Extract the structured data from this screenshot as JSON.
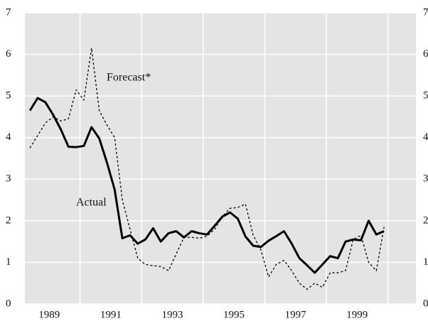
{
  "chart_data": {
    "type": "line",
    "x": [
      1988.375,
      1988.625,
      1988.875,
      1989.125,
      1989.375,
      1989.625,
      1989.875,
      1990.125,
      1990.375,
      1990.625,
      1990.875,
      1991.125,
      1991.375,
      1991.625,
      1991.875,
      1992.125,
      1992.375,
      1992.625,
      1992.875,
      1993.125,
      1993.375,
      1993.625,
      1993.875,
      1994.125,
      1994.375,
      1994.625,
      1994.875,
      1995.125,
      1995.375,
      1995.625,
      1995.875,
      1996.125,
      1996.375,
      1996.625,
      1996.875,
      1997.125,
      1997.375,
      1997.625,
      1997.875,
      1998.125,
      1998.375,
      1998.625,
      1998.875,
      1999.125,
      1999.375,
      1999.625,
      1999.875
    ],
    "series": [
      {
        "name": "Actual",
        "color": "#000000",
        "style": "solid",
        "values": [
          4.65,
          4.95,
          4.85,
          4.55,
          4.2,
          3.78,
          3.77,
          3.8,
          4.25,
          3.98,
          3.4,
          2.75,
          1.58,
          1.65,
          1.45,
          1.55,
          1.82,
          1.5,
          1.7,
          1.75,
          1.6,
          1.75,
          1.7,
          1.67,
          1.88,
          2.1,
          2.2,
          2.05,
          1.62,
          1.4,
          1.37,
          1.52,
          1.63,
          1.75,
          1.45,
          1.1,
          0.93,
          0.75,
          0.95,
          1.15,
          1.1,
          1.5,
          1.55,
          1.53,
          2.0,
          1.67,
          1.75
        ]
      },
      {
        "name": "Forecast*",
        "color": "#000000",
        "style": "dashed",
        "values": [
          3.75,
          4.05,
          4.35,
          4.5,
          4.4,
          4.45,
          5.15,
          4.9,
          6.15,
          4.65,
          4.3,
          4.0,
          2.5,
          1.8,
          1.1,
          0.95,
          0.92,
          0.9,
          0.8,
          1.2,
          1.6,
          1.6,
          1.58,
          1.63,
          1.8,
          2.1,
          2.3,
          2.32,
          2.4,
          1.65,
          1.3,
          0.65,
          0.95,
          1.05,
          0.8,
          0.5,
          0.35,
          0.5,
          0.4,
          0.75,
          0.75,
          0.8,
          1.55,
          1.65,
          1.0,
          0.8,
          1.85
        ]
      }
    ],
    "xlim": [
      1988.21,
      2000.91
    ],
    "xticks": [
      {
        "value": 1989,
        "label": "1989"
      },
      {
        "value": 1991,
        "label": "1991"
      },
      {
        "value": 1993,
        "label": "1993"
      },
      {
        "value": 1995,
        "label": "1995"
      },
      {
        "value": 1997,
        "label": "1997"
      },
      {
        "value": 1999,
        "label": "1999"
      }
    ],
    "xgrid": [
      1990,
      1992,
      1994,
      1996,
      1998,
      2000
    ],
    "ylim": [
      0,
      7
    ],
    "yticks": [
      0,
      1,
      2,
      3,
      4,
      5,
      6,
      7
    ],
    "y2lim": [
      0,
      7
    ],
    "y2ticks": [
      0,
      1,
      2,
      3,
      4,
      5,
      6,
      7
    ],
    "grid": true,
    "background": "#e4e4e4"
  }
}
